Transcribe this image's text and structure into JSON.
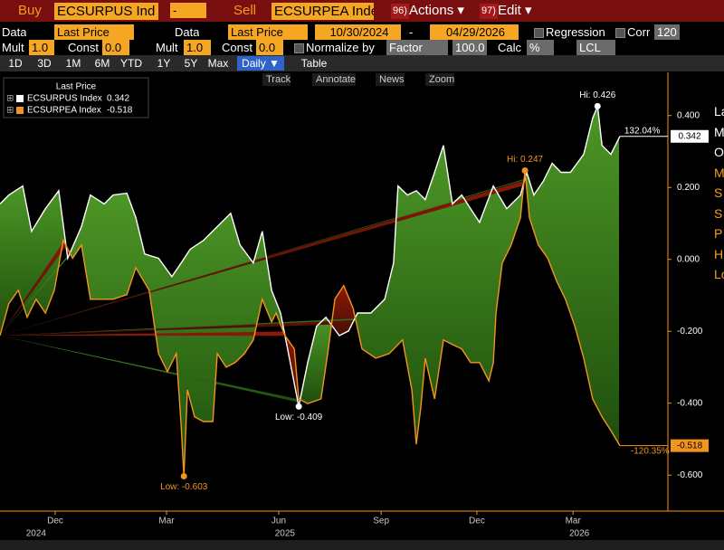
{
  "toolbar": {
    "buy_label": "Buy",
    "buy_ticker": "ECSURPUS Ind",
    "buy_side": "-",
    "sell_label": "Sell",
    "sell_ticker": "ECSURPEA Inde",
    "actions_num": "96)",
    "actions": "Actions ▾",
    "edit_num": "97)",
    "edit": "Edit ▾"
  },
  "settings": {
    "data1_label": "Data",
    "data1_value": "Last Price",
    "data2_label": "Data",
    "data2_value": "Last Price",
    "start_date": "10/30/2024",
    "date_sep": "-",
    "end_date": "04/29/2026",
    "regression": "Regression",
    "corr": "Corr",
    "corr_value": "120",
    "mult1_label": "Mult",
    "mult1": "1.0",
    "const1_label": "Const",
    "const1": "0.0",
    "mult2_label": "Mult",
    "mult2": "1.0",
    "const2_label": "Const",
    "const2": "0.0",
    "normalize": "Normalize by",
    "normalize_value": "Factor",
    "factor": "100.0",
    "calc": "Calc",
    "calc_value": "%",
    "lcl": "LCL"
  },
  "periods": [
    "1D",
    "3D",
    "1M",
    "6M",
    "YTD",
    "1Y",
    "5Y",
    "Max"
  ],
  "frequency": "Daily ▼",
  "table": "Table",
  "chart_tools": [
    "Track",
    "Annotate",
    "News",
    "Zoom"
  ],
  "chart_data": {
    "type": "line",
    "legend_title": "Last Price",
    "xlim": [
      2024.793,
      2026.293
    ],
    "ylim": [
      -0.7,
      0.52
    ],
    "xticks": [
      {
        "value": 2024.917,
        "label": "Dec"
      },
      {
        "value": 2025.167,
        "label": "Mar"
      },
      {
        "value": 2025.419,
        "label": "Jun"
      },
      {
        "value": 2025.649,
        "label": "Sep"
      },
      {
        "value": 2025.864,
        "label": "Dec"
      },
      {
        "value": 2026.08,
        "label": "Mar"
      }
    ],
    "x_year_labels": [
      {
        "value": 2024.874,
        "label": "2024"
      },
      {
        "value": 2025.433,
        "label": "2025"
      },
      {
        "value": 2026.094,
        "label": "2026"
      }
    ],
    "yticks": [
      {
        "value": 0.4,
        "label": "0.400"
      },
      {
        "value": 0.2,
        "label": "0.200"
      },
      {
        "value": 0,
        "label": "0.000"
      },
      {
        "value": -0.2,
        "label": "-0.200"
      },
      {
        "value": -0.4,
        "label": "-0.400"
      },
      {
        "value": -0.6,
        "label": "-0.600"
      }
    ],
    "series": [
      {
        "name": "ECSURPUS Index",
        "color": "#ffffff",
        "hi_label": "Hi: 0.426",
        "low_label": "Low: -0.409",
        "change_label": "132.04%",
        "x": [
          2024.793,
          2024.813,
          2024.844,
          2024.864,
          2024.895,
          2024.925,
          2024.945,
          2024.976,
          2024.996,
          2025.027,
          2025.047,
          2025.078,
          2025.098,
          2025.118,
          2025.149,
          2025.179,
          2025.2,
          2025.22,
          2025.25,
          2025.281,
          2025.311,
          2025.332,
          2025.362,
          2025.382,
          2025.403,
          2025.423,
          2025.443,
          2025.464,
          2025.484,
          2025.504,
          2025.525,
          2025.555,
          2025.576,
          2025.596,
          2025.626,
          2025.657,
          2025.677,
          2025.687,
          2025.708,
          2025.728,
          2025.748,
          2025.769,
          2025.789,
          2025.809,
          2025.83,
          2025.85,
          2025.87,
          2025.901,
          2025.931,
          2025.962,
          2025.976,
          2025.992,
          2026.013,
          2026.033,
          2026.053,
          2026.074,
          2026.104,
          2026.124,
          2026.135,
          2026.145,
          2026.165,
          2026.185
        ],
        "values": [
          0.154,
          0.179,
          0.204,
          0.078,
          0.141,
          0.191,
          0.003,
          0.091,
          0.179,
          0.154,
          0.179,
          0.184,
          0.116,
          0.015,
          0.003,
          -0.048,
          -0.01,
          0.028,
          0.053,
          0.091,
          0.128,
          0.04,
          -0.01,
          0.078,
          -0.086,
          -0.149,
          -0.275,
          -0.409,
          -0.287,
          -0.186,
          -0.161,
          -0.212,
          -0.199,
          -0.149,
          -0.149,
          -0.111,
          -0.01,
          0.204,
          0.179,
          0.191,
          0.166,
          0.242,
          0.317,
          0.154,
          0.179,
          0.141,
          0.103,
          0.204,
          0.141,
          0.179,
          0.242,
          0.179,
          0.217,
          0.267,
          0.242,
          0.242,
          0.292,
          0.393,
          0.426,
          0.317,
          0.292,
          0.342
        ]
      },
      {
        "name": "ECSURPEA Index",
        "color": "#f39420",
        "hi_label": "Hi: 0.247",
        "low_label": "Low: -0.603",
        "change_label": "-120.35%",
        "x": [
          2024.793,
          2024.813,
          2024.834,
          2024.854,
          2024.874,
          2024.895,
          2024.915,
          2024.935,
          2024.956,
          2024.976,
          2024.996,
          2025.027,
          2025.047,
          2025.078,
          2025.098,
          2025.128,
          2025.149,
          2025.169,
          2025.189,
          2025.2,
          2025.206,
          2025.214,
          2025.23,
          2025.25,
          2025.271,
          2025.281,
          2025.301,
          2025.321,
          2025.342,
          2025.362,
          2025.382,
          2025.403,
          2025.413,
          2025.433,
          2025.454,
          2025.464,
          2025.484,
          2025.514,
          2025.529,
          2025.545,
          2025.565,
          2025.586,
          2025.606,
          2025.637,
          2025.667,
          2025.697,
          2025.718,
          2025.728,
          2025.738,
          2025.748,
          2025.769,
          2025.789,
          2025.809,
          2025.83,
          2025.85,
          2025.87,
          2025.891,
          2025.901,
          2025.907,
          2025.921,
          2025.941,
          2025.962,
          2025.972,
          2025.982,
          2026.002,
          2026.023,
          2026.043,
          2026.063,
          2026.084,
          2026.104,
          2026.124,
          2026.145,
          2026.165,
          2026.185
        ],
        "values": [
          -0.212,
          -0.123,
          -0.086,
          -0.161,
          -0.111,
          -0.149,
          -0.086,
          0.053,
          0.003,
          0.04,
          -0.111,
          -0.111,
          -0.111,
          -0.098,
          -0.023,
          -0.086,
          -0.262,
          -0.312,
          -0.262,
          -0.463,
          -0.603,
          -0.363,
          -0.438,
          -0.451,
          -0.451,
          -0.262,
          -0.3,
          -0.287,
          -0.262,
          -0.224,
          -0.111,
          -0.174,
          -0.149,
          -0.212,
          -0.249,
          -0.388,
          -0.401,
          -0.388,
          -0.262,
          -0.111,
          -0.073,
          -0.136,
          -0.249,
          -0.275,
          -0.262,
          -0.224,
          -0.363,
          -0.514,
          -0.413,
          -0.275,
          -0.388,
          -0.224,
          -0.237,
          -0.249,
          -0.287,
          -0.287,
          -0.338,
          -0.287,
          -0.149,
          -0.01,
          0.04,
          0.116,
          0.247,
          0.116,
          0.04,
          0.003,
          -0.06,
          -0.111,
          -0.186,
          -0.275,
          -0.388,
          -0.438,
          -0.476,
          -0.518
        ]
      }
    ]
  },
  "side_panel": [
    "La",
    "M",
    "O",
    "M",
    "S",
    "S",
    "P",
    "H",
    "Lo"
  ]
}
